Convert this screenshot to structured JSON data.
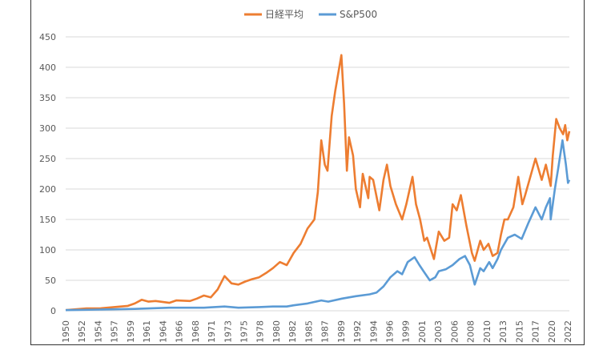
{
  "chart_data": {
    "type": "line",
    "title": "",
    "xlabel": "",
    "ylabel": "",
    "ylim": [
      0,
      450
    ],
    "yticks": [
      0,
      50,
      100,
      150,
      200,
      250,
      300,
      350,
      400,
      450
    ],
    "xlim": [
      1950,
      2022.9
    ],
    "xticks": [
      "1950",
      "1952",
      "1954",
      "1957",
      "1959",
      "1961",
      "1964",
      "1966",
      "1968",
      "1971",
      "1973",
      "1975",
      "1978",
      "1980",
      "1982",
      "1985",
      "1987",
      "1989",
      "1992",
      "1994",
      "1996",
      "1999",
      "2001",
      "2003",
      "2006",
      "2008",
      "2010",
      "2013",
      "2015",
      "2017",
      "2020",
      "2022"
    ],
    "grid": "horizontal",
    "legend": "top",
    "series": [
      {
        "name": "日経平均",
        "color": "#ED7D31",
        "points": [
          [
            1950,
            1
          ],
          [
            1953,
            4
          ],
          [
            1955,
            4
          ],
          [
            1957,
            6
          ],
          [
            1959,
            8
          ],
          [
            1960,
            12
          ],
          [
            1961,
            18
          ],
          [
            1962,
            15
          ],
          [
            1963,
            16
          ],
          [
            1965,
            13
          ],
          [
            1966,
            17
          ],
          [
            1968,
            16
          ],
          [
            1969,
            20
          ],
          [
            1970,
            25
          ],
          [
            1971,
            22
          ],
          [
            1972,
            35
          ],
          [
            1973,
            57
          ],
          [
            1974,
            45
          ],
          [
            1975,
            43
          ],
          [
            1976,
            48
          ],
          [
            1977,
            52
          ],
          [
            1978,
            55
          ],
          [
            1979,
            62
          ],
          [
            1980,
            70
          ],
          [
            1981,
            80
          ],
          [
            1982,
            75
          ],
          [
            1983,
            95
          ],
          [
            1984,
            110
          ],
          [
            1985,
            135
          ],
          [
            1986,
            150
          ],
          [
            1986.5,
            195
          ],
          [
            1987,
            280
          ],
          [
            1987.5,
            240
          ],
          [
            1987.9,
            230
          ],
          [
            1988.5,
            320
          ],
          [
            1989,
            360
          ],
          [
            1989.9,
            420
          ],
          [
            1990.3,
            340
          ],
          [
            1990.7,
            230
          ],
          [
            1991,
            285
          ],
          [
            1991.6,
            255
          ],
          [
            1992,
            200
          ],
          [
            1992.6,
            170
          ],
          [
            1993,
            225
          ],
          [
            1993.8,
            185
          ],
          [
            1994,
            220
          ],
          [
            1994.5,
            215
          ],
          [
            1995.4,
            165
          ],
          [
            1996,
            215
          ],
          [
            1996.5,
            240
          ],
          [
            1997,
            205
          ],
          [
            1997.8,
            175
          ],
          [
            1998.7,
            150
          ],
          [
            1999.3,
            175
          ],
          [
            2000.2,
            220
          ],
          [
            2000.7,
            175
          ],
          [
            2001.3,
            150
          ],
          [
            2001.9,
            115
          ],
          [
            2002.3,
            120
          ],
          [
            2003.3,
            85
          ],
          [
            2004,
            130
          ],
          [
            2004.8,
            115
          ],
          [
            2005.5,
            120
          ],
          [
            2006,
            175
          ],
          [
            2006.6,
            165
          ],
          [
            2007.2,
            190
          ],
          [
            2008,
            140
          ],
          [
            2008.8,
            95
          ],
          [
            2009.2,
            82
          ],
          [
            2010,
            115
          ],
          [
            2010.5,
            100
          ],
          [
            2011.2,
            110
          ],
          [
            2011.8,
            90
          ],
          [
            2012.5,
            95
          ],
          [
            2013,
            125
          ],
          [
            2013.5,
            150
          ],
          [
            2014,
            150
          ],
          [
            2014.8,
            170
          ],
          [
            2015.5,
            220
          ],
          [
            2016.1,
            175
          ],
          [
            2016.5,
            190
          ],
          [
            2017.5,
            230
          ],
          [
            2018,
            250
          ],
          [
            2018.9,
            215
          ],
          [
            2019.5,
            240
          ],
          [
            2020.2,
            205
          ],
          [
            2020.5,
            255
          ],
          [
            2021,
            315
          ],
          [
            2021.5,
            300
          ],
          [
            2022,
            290
          ],
          [
            2022.3,
            305
          ],
          [
            2022.6,
            280
          ],
          [
            2022.9,
            295
          ]
        ]
      },
      {
        "name": "S&P500",
        "color": "#5B9BD5",
        "points": [
          [
            1950,
            1
          ],
          [
            1955,
            2
          ],
          [
            1960,
            3
          ],
          [
            1965,
            5
          ],
          [
            1970,
            5
          ],
          [
            1973,
            7
          ],
          [
            1975,
            5
          ],
          [
            1978,
            6
          ],
          [
            1980,
            7
          ],
          [
            1982,
            7
          ],
          [
            1983,
            9
          ],
          [
            1985,
            12
          ],
          [
            1987,
            17
          ],
          [
            1988,
            15
          ],
          [
            1990,
            20
          ],
          [
            1992,
            24
          ],
          [
            1994,
            27
          ],
          [
            1995,
            30
          ],
          [
            1996,
            40
          ],
          [
            1997,
            55
          ],
          [
            1998,
            65
          ],
          [
            1998.7,
            60
          ],
          [
            1999.5,
            80
          ],
          [
            2000.5,
            88
          ],
          [
            2001.2,
            75
          ],
          [
            2001.8,
            65
          ],
          [
            2002.7,
            50
          ],
          [
            2003.5,
            55
          ],
          [
            2004,
            65
          ],
          [
            2005,
            68
          ],
          [
            2006,
            75
          ],
          [
            2007,
            85
          ],
          [
            2007.8,
            90
          ],
          [
            2008.5,
            75
          ],
          [
            2009.2,
            43
          ],
          [
            2010,
            70
          ],
          [
            2010.5,
            65
          ],
          [
            2011.3,
            80
          ],
          [
            2011.8,
            70
          ],
          [
            2012.5,
            85
          ],
          [
            2013,
            100
          ],
          [
            2014,
            120
          ],
          [
            2015,
            125
          ],
          [
            2016,
            118
          ],
          [
            2017,
            145
          ],
          [
            2018,
            170
          ],
          [
            2018.9,
            150
          ],
          [
            2019.5,
            170
          ],
          [
            2020.1,
            185
          ],
          [
            2020.2,
            150
          ],
          [
            2020.8,
            200
          ],
          [
            2021.3,
            235
          ],
          [
            2021.9,
            280
          ],
          [
            2022.4,
            240
          ],
          [
            2022.7,
            210
          ],
          [
            2022.9,
            215
          ]
        ]
      }
    ]
  }
}
